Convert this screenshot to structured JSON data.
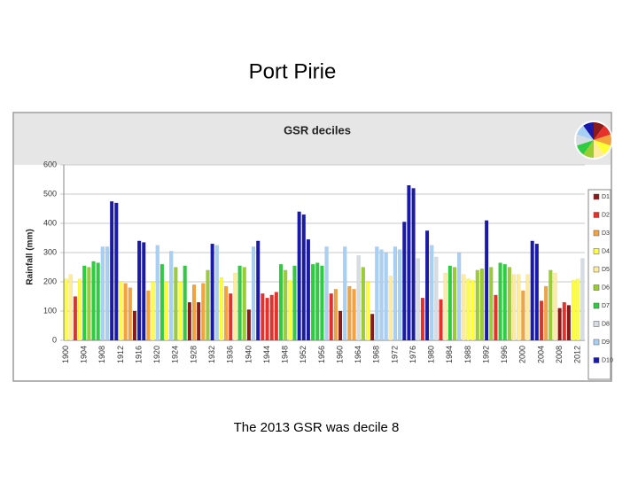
{
  "slide_title": "Port Pirie",
  "caption": "The 2013 GSR was decile 8",
  "chart_data": {
    "type": "bar",
    "title": "GSR deciles",
    "y_label": "Rainfall (mm)",
    "categories": [
      "1900",
      null,
      null,
      null,
      "1904",
      null,
      null,
      null,
      "1908",
      null,
      null,
      null,
      "1912",
      null,
      null,
      null,
      "1916",
      null,
      null,
      null,
      "1920",
      null,
      null,
      null,
      "1924",
      null,
      null,
      null,
      "1928",
      null,
      null,
      null,
      "1932",
      null,
      null,
      null,
      "1936",
      null,
      null,
      null,
      "1940",
      null,
      null,
      null,
      "1944",
      null,
      null,
      null,
      "1948",
      null,
      null,
      null,
      "1952",
      null,
      null,
      null,
      "1956",
      null,
      null,
      null,
      "1960",
      null,
      null,
      null,
      "1964",
      null,
      null,
      null,
      "1968",
      null,
      null,
      null,
      "1972",
      null,
      null,
      null,
      "1976",
      null,
      null,
      null,
      "1980",
      null,
      null,
      null,
      "1984",
      null,
      null,
      null,
      "1988",
      null,
      null,
      null,
      "1992",
      null,
      null,
      null,
      "1996",
      null,
      null,
      null,
      "2000",
      null,
      null,
      null,
      "2004",
      null,
      null,
      null,
      "2008",
      null,
      null,
      null,
      "2012",
      null
    ],
    "values": [
      210,
      225,
      150,
      210,
      255,
      250,
      270,
      265,
      320,
      320,
      475,
      470,
      200,
      195,
      180,
      100,
      340,
      335,
      170,
      200,
      325,
      260,
      200,
      305,
      250,
      200,
      255,
      130,
      190,
      130,
      195,
      240,
      330,
      325,
      215,
      185,
      160,
      230,
      255,
      250,
      105,
      320,
      340,
      160,
      145,
      155,
      165,
      260,
      240,
      205,
      255,
      440,
      430,
      345,
      260,
      265,
      255,
      320,
      160,
      175,
      100,
      320,
      185,
      175,
      290,
      250,
      200,
      90,
      320,
      310,
      300,
      220,
      320,
      310,
      405,
      530,
      520,
      280,
      145,
      375,
      325,
      285,
      140,
      230,
      255,
      250,
      300,
      225,
      210,
      205,
      240,
      245,
      410,
      250,
      155,
      265,
      260,
      250,
      225,
      225,
      170,
      225,
      340,
      330,
      135,
      185,
      240,
      230,
      110,
      130,
      120,
      205,
      210,
      280
    ],
    "colors": [
      "#ffff33",
      "#ffeb9c",
      "#e8302a",
      "#ffff33",
      "#2ecc40",
      "#9acd32",
      "#2ecc40",
      "#2ecc40",
      "#a8d0f5",
      "#a8d0f5",
      "#1a1aaa",
      "#1a1aaa",
      "#ffff33",
      "#f4a23c",
      "#f4a23c",
      "#8b1a1a",
      "#1a1aaa",
      "#1a1aaa",
      "#f4a23c",
      "#ffff33",
      "#a8d0f5",
      "#2ecc40",
      "#ffff33",
      "#a8d0f5",
      "#9acd32",
      "#ffff33",
      "#2ecc40",
      "#8b1a1a",
      "#f4a23c",
      "#8b1a1a",
      "#f4a23c",
      "#9acd32",
      "#1a1aaa",
      "#a8d0f5",
      "#ffff33",
      "#f4a23c",
      "#e8302a",
      "#ffeb9c",
      "#2ecc40",
      "#9acd32",
      "#8b1a1a",
      "#a8d0f5",
      "#1a1aaa",
      "#e8302a",
      "#e8302a",
      "#e8302a",
      "#e8302a",
      "#2ecc40",
      "#9acd32",
      "#ffff33",
      "#2ecc40",
      "#1a1aaa",
      "#1a1aaa",
      "#1a1aaa",
      "#2ecc40",
      "#2ecc40",
      "#2ecc40",
      "#a8d0f5",
      "#e8302a",
      "#f4a23c",
      "#8b1a1a",
      "#a8d0f5",
      "#f4a23c",
      "#f4a23c",
      "#d6dce4",
      "#9acd32",
      "#ffff33",
      "#8b1a1a",
      "#a8d0f5",
      "#a8d0f5",
      "#a8d0f5",
      "#ffeb9c",
      "#a8d0f5",
      "#a8d0f5",
      "#1a1aaa",
      "#1a1aaa",
      "#1a1aaa",
      "#d6dce4",
      "#e8302a",
      "#1a1aaa",
      "#a8d0f5",
      "#d6dce4",
      "#e8302a",
      "#ffeb9c",
      "#2ecc40",
      "#9acd32",
      "#a8d0f5",
      "#ffeb9c",
      "#ffff33",
      "#ffff33",
      "#9acd32",
      "#9acd32",
      "#1a1aaa",
      "#9acd32",
      "#e8302a",
      "#2ecc40",
      "#2ecc40",
      "#9acd32",
      "#ffeb9c",
      "#ffeb9c",
      "#f4a23c",
      "#ffeb9c",
      "#1a1aaa",
      "#1a1aaa",
      "#e8302a",
      "#f4a23c",
      "#9acd32",
      "#ffeb9c",
      "#8b1a1a",
      "#e8302a",
      "#8b1a1a",
      "#ffff33",
      "#ffff33",
      "#d6dce4"
    ],
    "legend": [
      {
        "name": "D1",
        "color": "#8b1a1a"
      },
      {
        "name": "D2",
        "color": "#e8302a"
      },
      {
        "name": "D3",
        "color": "#f4a23c"
      },
      {
        "name": "D4",
        "color": "#ffff33"
      },
      {
        "name": "D5",
        "color": "#ffeb9c"
      },
      {
        "name": "D6",
        "color": "#9acd32"
      },
      {
        "name": "D7",
        "color": "#2ecc40"
      },
      {
        "name": "D8",
        "color": "#d6dce4"
      },
      {
        "name": "D9",
        "color": "#a8d0f5"
      },
      {
        "name": "D10",
        "color": "#1a1aaa"
      }
    ],
    "ylim": [
      0,
      600
    ],
    "yticks": [
      0,
      100,
      200,
      300,
      400,
      500,
      600
    ],
    "grid": true
  }
}
